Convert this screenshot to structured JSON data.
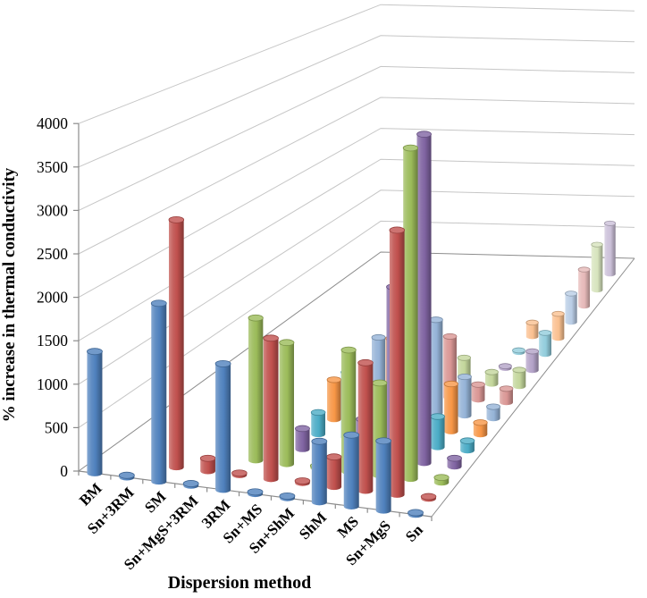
{
  "figure": {
    "background": "#FFFFFF",
    "gridline_color": "#C6C6C6",
    "axis_color": "#8C8C8C"
  },
  "chart_data": {
    "type": "bar",
    "subtype": "3d-cylinder",
    "title": "",
    "xlabel": "Dispersion method",
    "ylabel": "% increase in thermal conductivity",
    "ylim": [
      0,
      4000
    ],
    "ytick_step": 500,
    "yticks": [
      0,
      500,
      1000,
      1500,
      2000,
      2500,
      3000,
      3500,
      4000
    ],
    "grid": true,
    "legend": false,
    "categories": [
      "BM",
      "Sn+3RM",
      "SM",
      "Sn+MgS+3RM",
      "3RM",
      "Sn+MS",
      "Sn+ShM",
      "ShM",
      "MS",
      "Sn+MgS",
      "Sn"
    ],
    "series": [
      {
        "color": "#4F81BD",
        "values": [
          1400,
          0,
          2050,
          0,
          1450,
          0,
          0,
          700,
          820,
          800,
          0
        ]
      },
      {
        "color": "#C0504D",
        "values": [
          null,
          null,
          2900,
          150,
          0,
          1650,
          0,
          350,
          1500,
          3100,
          0
        ]
      },
      {
        "color": "#9BBB59",
        "values": [
          null,
          null,
          null,
          null,
          1700,
          1450,
          0,
          1450,
          1100,
          3950,
          60
        ]
      },
      {
        "color": "#8064A2",
        "values": [
          null,
          null,
          null,
          null,
          null,
          250,
          null,
          450,
          2100,
          4000,
          100
        ]
      },
      {
        "color": "#4BACC6",
        "values": [
          null,
          null,
          null,
          null,
          null,
          270,
          810,
          300,
          650,
          380,
          120
        ]
      },
      {
        "color": "#F79646",
        "values": [
          null,
          null,
          null,
          null,
          null,
          500,
          null,
          1100,
          1100,
          600,
          150
        ]
      },
      {
        "color": "#95B3D7",
        "values": [
          null,
          null,
          null,
          null,
          null,
          null,
          900,
          1100,
          1200,
          500,
          150
        ]
      },
      {
        "color": "#D99694",
        "values": [
          null,
          null,
          null,
          null,
          null,
          null,
          null,
          550,
          800,
          200,
          180
        ]
      },
      {
        "color": "#C3D69B",
        "values": [
          null,
          null,
          null,
          null,
          null,
          null,
          null,
          null,
          320,
          160,
          220
        ]
      },
      {
        "color": "#B3A2C7",
        "values": [
          null,
          null,
          null,
          null,
          null,
          null,
          null,
          null,
          null,
          0,
          260
        ]
      },
      {
        "color": "#92CDDC",
        "values": [
          null,
          null,
          null,
          null,
          null,
          null,
          null,
          null,
          null,
          0,
          300
        ]
      },
      {
        "color": "#FAC090",
        "values": [
          null,
          null,
          null,
          null,
          null,
          null,
          null,
          null,
          null,
          200,
          350
        ]
      },
      {
        "color": "#B9CDE5",
        "values": [
          null,
          null,
          null,
          null,
          null,
          null,
          null,
          null,
          null,
          null,
          420
        ]
      },
      {
        "color": "#E6B9B8",
        "values": [
          null,
          null,
          null,
          null,
          null,
          null,
          null,
          null,
          null,
          null,
          550
        ]
      },
      {
        "color": "#D7E4BD",
        "values": [
          null,
          null,
          null,
          null,
          null,
          null,
          null,
          null,
          null,
          null,
          700
        ]
      },
      {
        "color": "#CCC1D9",
        "values": [
          null,
          null,
          null,
          null,
          null,
          null,
          null,
          null,
          null,
          null,
          800
        ]
      }
    ]
  }
}
